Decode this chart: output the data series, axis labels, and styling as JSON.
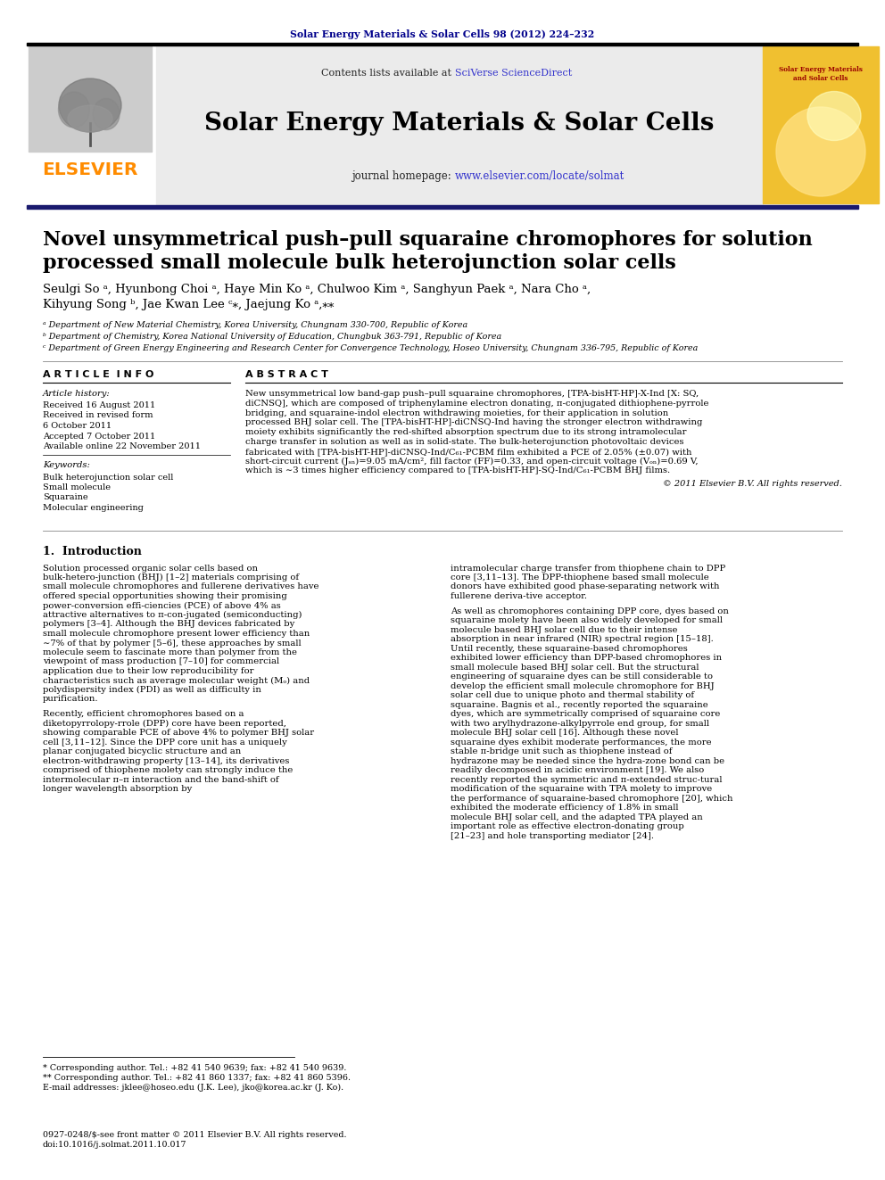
{
  "page_bg": "#ffffff",
  "top_journal_text": "Solar Energy Materials & Solar Cells 98 (2012) 224–232",
  "top_journal_color": "#00008B",
  "header_bg": "#ebebeb",
  "header_title": "Solar Energy Materials & Solar Cells",
  "header_contents_plain": "Contents lists available at ",
  "header_sciverse": "SciVerse ScienceDirect",
  "header_sciverse_color": "#3333cc",
  "header_homepage_plain": "journal homepage: ",
  "header_url": "www.elsevier.com/locate/solmat",
  "header_url_color": "#3333cc",
  "elsevier_color": "#FF8C00",
  "paper_title_line1": "Novel unsymmetrical push–pull squaraine chromophores for solution",
  "paper_title_line2": "processed small molecule bulk heterojunction solar cells",
  "authors_line1": "Seulgi So ᵃ, Hyunbong Choi ᵃ, Haye Min Ko ᵃ, Chulwoo Kim ᵃ, Sanghyun Paek ᵃ, Nara Cho ᵃ,",
  "authors_line2": "Kihyung Song ᵇ, Jae Kwan Lee ᶜ⁎, Jaejung Ko ᵃ,⁎⁎",
  "affil_a": "ᵃ Department of New Material Chemistry, Korea University, Chungnam 330-700, Republic of Korea",
  "affil_b": "ᵇ Department of Chemistry, Korea National University of Education, Chungbuk 363-791, Republic of Korea",
  "affil_c": "ᶜ Department of Green Energy Engineering and Research Center for Convergence Technology, Hoseo University, Chungnam 336-795, Republic of Korea",
  "article_info_title": "A R T I C L E  I N F O",
  "article_history_title": "Article history:",
  "article_history_lines": [
    "Received 16 August 2011",
    "Received in revised form",
    "6 October 2011",
    "Accepted 7 October 2011",
    "Available online 22 November 2011"
  ],
  "keywords_title": "Keywords:",
  "keywords": [
    "Bulk heterojunction solar cell",
    "Small molecule",
    "Squaraine",
    "Molecular engineering"
  ],
  "abstract_title": "A B S T R A C T",
  "abstract_lines": [
    "New unsymmetrical low band-gap push–pull squaraine chromophores, [TPA-bisHT-HP]-X-Ind [X: SQ,",
    "diCNSQ], which are composed of triphenylamine electron donating, π-conjugated dithiophene-pyrrole",
    "bridging, and squaraine-indol electron withdrawing moieties, for their application in solution",
    "processed BHJ solar cell. The [TPA-bisHT-HP]-diCNSQ-Ind having the stronger electron withdrawing",
    "moiety exhibits significantly the red-shifted absorption spectrum due to its strong intramolecular",
    "charge transfer in solution as well as in solid-state. The bulk-heterojunction photovoltaic devices",
    "fabricated with [TPA-bisHT-HP]-diCNSQ-Ind/C₆₁-PCBM film exhibited a PCE of 2.05% (±0.07) with",
    "short-circuit current (Jₛₙ)=9.05 mA/cm², fill factor (FF)=0.33, and open-circuit voltage (Vₒₙ)=0.69 V,",
    "which is ∼3 times higher efficiency compared to [TPA-bisHT-HP]-SQ-Ind/C₆₁-PCBM BHJ films."
  ],
  "abstract_copyright": "© 2011 Elsevier B.V. All rights reserved.",
  "intro_title": "1.  Introduction",
  "intro_col1_paras": [
    "Solution processed organic solar cells based on bulk-hetero-junction (BHJ) [1–2] materials comprising of small molecule chromophores and fullerene derivatives have offered special opportunities showing their promising power-conversion effi-ciencies (PCE) of above 4% as attractive alternatives to π-con-jugated (semiconducting) polymers [3–4]. Although the BHJ devices fabricated by small molecule chromophore present lower efficiency than ∼7% of that by polymer [5–6], these approaches by small molecule seem to fascinate more than polymer from the viewpoint of mass production [7–10] for commercial application due to their low reproducibility for characteristics such as average molecular weight (Mₒ) and polydispersity index (PDI) as well as difficulty in purification.",
    "Recently, efficient chromophores based on a diketopyrrolopy-rrole (DPP) core have been reported, showing comparable PCE of above 4% to polymer BHJ solar cell [3,11–12]. Since the DPP core unit has a uniquely planar conjugated bicyclic structure and an electron-withdrawing property [13–14], its derivatives comprised of thiophene molety can strongly induce the intermolecular π–π interaction and the band-shift of longer wavelength absorption by"
  ],
  "intro_col2_paras": [
    "intramolecular charge transfer from thiophene chain to DPP core [3,11–13]. The DPP-thiophene based small molecule donors have exhibited good phase-separating network with fullerene deriva-tive acceptor.",
    "As well as chromophores containing DPP core, dyes based on squaraine molety have been also widely developed for small molecule based BHJ solar cell due to their intense absorption in near infrared (NIR) spectral region [15–18]. Until recently, these squaraine-based chromophores exhibited lower efficiency than DPP-based chromophores in small molecule based BHJ solar cell. But the structural engineering of squaraine dyes can be still considerable to develop the efficient small molecule chromophore for BHJ solar cell due to unique photo and thermal stability of squaraine. Bagnis et al., recently reported the squaraine dyes, which are symmetrically comprised of squaraine core with two arylhydrazone-alkylpyrrole end group, for small molecule BHJ solar cell [16]. Although these novel squaraine dyes exhibit moderate performances, the more stable π-bridge unit such as thiophene instead of hydrazone may be needed since the hydra-zone bond can be readily decomposed in acidic environment [19]. We also recently reported the symmetric and π-extended struc-tural modification of the squaraine with TPA molety to improve the performance of squaraine-based chromophore [20], which exhibited the moderate efficiency of 1.8% in small molecule BHJ solar cell, and the adapted TPA played an important role as effective electron-donating group [21–23] and hole transporting mediator [24]."
  ],
  "footnote1": "* Corresponding author. Tel.: +82 41 540 9639; fax: +82 41 540 9639.",
  "footnote2": "** Corresponding author. Tel.: +82 41 860 1337; fax: +82 41 860 5396.",
  "footnote3": "E-mail addresses: jklee@hoseo.edu (J.K. Lee), jko@korea.ac.kr (J. Ko).",
  "issn_line": "0927-0248/$-see front matter © 2011 Elsevier B.V. All rights reserved.",
  "doi_line": "doi:10.1016/j.solmat.2011.10.017"
}
